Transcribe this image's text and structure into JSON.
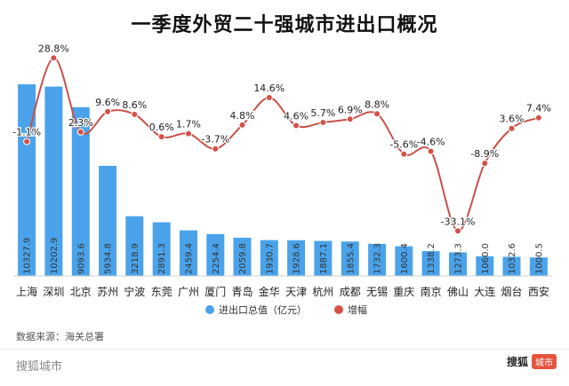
{
  "title": "一季度外贸二十强城市进出口概况",
  "source_note": "数据来源：海关总署",
  "brand": "搜狐城市",
  "logo": {
    "text": "搜狐",
    "badge": "城市"
  },
  "colors": {
    "bar": "#4aa3ea",
    "line": "#c9514a",
    "marker": "#d4514a"
  },
  "chart_data": {
    "type": "bar",
    "categories": [
      "上海",
      "深圳",
      "北京",
      "苏州",
      "宁波",
      "东莞",
      "广州",
      "厦门",
      "青岛",
      "金华",
      "天津",
      "杭州",
      "成都",
      "无锡",
      "重庆",
      "南京",
      "佛山",
      "大连",
      "烟台",
      "西安"
    ],
    "series": [
      {
        "name": "进出口总值（亿元）",
        "type": "bar",
        "values": [
          10327.9,
          10202.9,
          9093.6,
          5934.8,
          3218.9,
          2891.3,
          2459.4,
          2254.4,
          2059.8,
          1930.7,
          1928.6,
          1887.1,
          1855.4,
          1732.3,
          1600.4,
          1338.2,
          1273.3,
          1060.0,
          1032.6,
          1000.5
        ],
        "labels": [
          "10327.9",
          "10202.9",
          "9093.6",
          "5934.8",
          "3218.9",
          "2891.3",
          "2459.4",
          "2254.4",
          "2059.8",
          "1930.7",
          "1928.6",
          "1887.1",
          "1855.4",
          "1732.3",
          "1600.4",
          "1338.2",
          "1273.3",
          "1060.0",
          "1032.6",
          "1000.5"
        ]
      },
      {
        "name": "增幅",
        "type": "line",
        "values": [
          -1.1,
          28.8,
          2.3,
          9.6,
          8.6,
          0.6,
          1.7,
          -3.7,
          4.8,
          14.6,
          4.6,
          5.7,
          6.9,
          8.8,
          -5.6,
          -4.6,
          -33.1,
          -8.9,
          3.6,
          7.4
        ],
        "labels": [
          "-1.1%",
          "28.8%",
          "2.3%",
          "9.6%",
          "8.6%",
          "0.6%",
          "1.7%",
          "-3.7%",
          "4.8%",
          "14.6%",
          "4.6%",
          "5.7%",
          "6.9%",
          "8.8%",
          "-5.6%",
          "-4.6%",
          "-33.1%",
          "-8.9%",
          "3.6%",
          "7.4%"
        ]
      }
    ],
    "ylim_bar": [
      0,
      12000
    ],
    "ylim_line": [
      -40,
      40
    ],
    "grid": false,
    "legend_position": "bottom"
  }
}
